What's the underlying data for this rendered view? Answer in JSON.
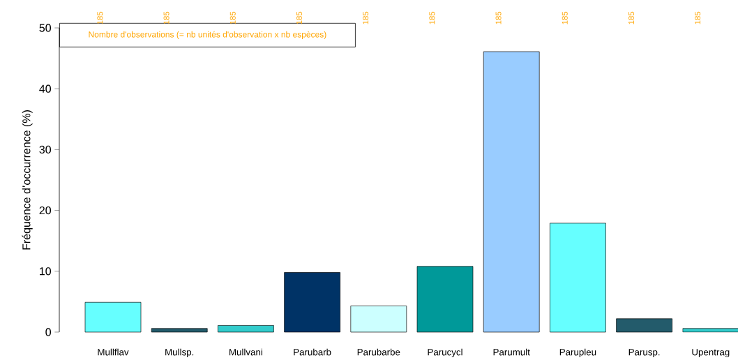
{
  "chart_data": {
    "type": "bar",
    "ylabel": "Fréquence d’occurrence (%)",
    "categories": [
      "Mullflav",
      "Mullsp.",
      "Mullvani",
      "Parubarb",
      "Parubarbe",
      "Parucycl",
      "Parumult",
      "Parupleu",
      "Parusp.",
      "Upentrag"
    ],
    "values": [
      4.9,
      0.6,
      1.1,
      9.8,
      4.3,
      10.8,
      46.1,
      17.9,
      2.2,
      0.6
    ],
    "colors": [
      "#66ffff",
      "#235b6b",
      "#33cccc",
      "#003366",
      "#ccffff",
      "#009999",
      "#99ccff",
      "#66ffff",
      "#235b6b",
      "#33cccc"
    ],
    "ylim": [
      0,
      50
    ],
    "yticks": [
      0,
      10,
      20,
      30,
      40,
      50
    ],
    "grid": false,
    "annotations": [
      "Nombre d'observations (= nb unités d'observation x nb espèces)",
      "185",
      "185",
      "185",
      "185",
      "185",
      "185",
      "185",
      "185",
      "185",
      "185"
    ]
  }
}
